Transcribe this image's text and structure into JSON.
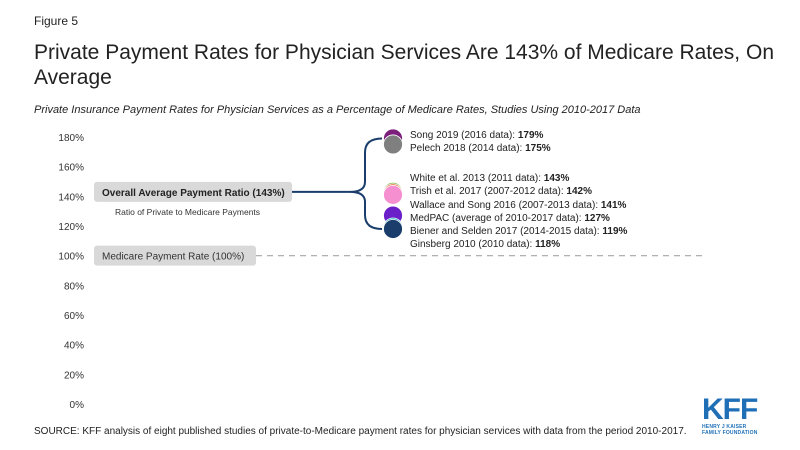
{
  "figure_label": "Figure 5",
  "title": "Private Payment Rates for Physician Services Are 143% of  Medicare Rates, On Average",
  "subtitle": "Private Insurance Payment Rates for Physician Services as a Percentage of Medicare Rates, Studies Using 2010-2017 Data",
  "source": "SOURCE: KFF analysis of eight published studies of private-to-Medicare payment rates for physician services with data from the period 2010-2017.",
  "logo": {
    "main": "KFF",
    "sub_line1": "HENRY J KAISER",
    "sub_line2": "FAMILY FOUNDATION"
  },
  "chart_data": {
    "type": "scatter",
    "yaxis": {
      "min": 0,
      "max": 180,
      "ticks": [
        "0%",
        "20%",
        "40%",
        "60%",
        "80%",
        "100%",
        "120%",
        "140%",
        "160%",
        "180%"
      ],
      "tick_values": [
        0,
        20,
        40,
        60,
        80,
        100,
        120,
        140,
        160,
        180
      ]
    },
    "grid": false,
    "reference_lines": [
      {
        "label": "Medicare Payment Rate (100%)",
        "value": 100,
        "style": "dashed"
      },
      {
        "label": "Overall Average Payment Ratio (143%)",
        "value": 143,
        "sublabel": "Ratio of Private to Medicare Payments"
      }
    ],
    "points": [
      {
        "study": "Song 2019 (2016 data)",
        "value": 179,
        "value_label": "179%",
        "color": "#7b1f7b"
      },
      {
        "study": "Pelech 2018 (2014 data)",
        "value": 175,
        "value_label": "175%",
        "color": "#7f7f7f"
      },
      {
        "study": "White et al. 2013 (2011 data)",
        "value": 143,
        "value_label": "143%",
        "color": "#7fb342"
      },
      {
        "study": "Trish et al. 2017 (2007-2012 data)",
        "value": 142,
        "value_label": "142%",
        "color": "#e8683f"
      },
      {
        "study": "Wallace and Song 2016 (2007-2013 data)",
        "value": 141,
        "value_label": "141%",
        "color": "#f58fd0"
      },
      {
        "study": "MedPAC (average of 2010-2017 data)",
        "value": 127,
        "value_label": "127%",
        "color": "#6a1fc9"
      },
      {
        "study": "Biener and Selden 2017 (2014-2015 data)",
        "value": 119,
        "value_label": "119%",
        "color": "#00a4b4"
      },
      {
        "study": "Ginsberg 2010 (2010 data)",
        "value": 118,
        "value_label": "118%",
        "color": "#1a3d6b"
      }
    ]
  }
}
